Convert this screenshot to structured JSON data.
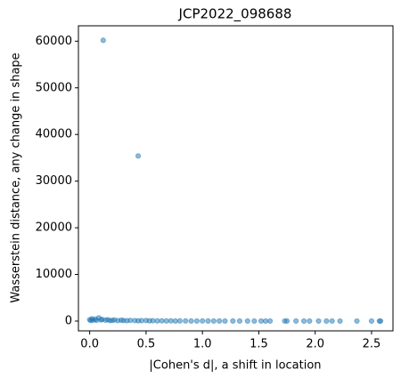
{
  "chart_data": {
    "type": "scatter",
    "title": "JCP2022_098688",
    "x_label": "|Cohen's d|, a shift in location",
    "y_label": "Wasserstein distance, any change in shape",
    "color": "#1f77b4",
    "series": [
      {
        "x": [
          0.12,
          0.43,
          0.0,
          0.01,
          0.02,
          0.03,
          0.05,
          0.06,
          0.08,
          0.1,
          0.11,
          0.14,
          0.16,
          0.18,
          0.2,
          0.22,
          0.25,
          0.28,
          0.3,
          0.33,
          0.36,
          0.4,
          0.43,
          0.46,
          0.5,
          0.53,
          0.56,
          0.6,
          0.64,
          0.68,
          0.72,
          0.76,
          0.8,
          0.85,
          0.9,
          0.95,
          1.0,
          1.05,
          1.1,
          1.15,
          1.2,
          1.27,
          1.33,
          1.4,
          1.46,
          1.52,
          1.56,
          1.6,
          1.73,
          1.75,
          1.83,
          1.9,
          1.95,
          2.03,
          2.1,
          2.15,
          2.22,
          2.37,
          2.5,
          2.57,
          2.58
        ],
        "y": [
          60200,
          35400,
          300,
          100,
          500,
          200,
          400,
          150,
          700,
          250,
          350,
          200,
          300,
          100,
          150,
          250,
          100,
          200,
          120,
          80,
          150,
          100,
          60,
          90,
          120,
          50,
          80,
          40,
          60,
          30,
          50,
          20,
          40,
          30,
          20,
          10,
          30,
          20,
          10,
          15,
          10,
          20,
          5,
          10,
          8,
          5,
          10,
          4,
          5,
          3,
          6,
          2,
          4,
          3,
          2,
          5,
          2,
          3,
          1,
          2,
          1
        ]
      }
    ],
    "xlim": [
      -0.1,
      2.69
    ],
    "ylim": [
      -2100,
      63300
    ],
    "xticks": [
      {
        "value": 0,
        "label": "0.0"
      },
      0.5,
      {
        "value": 1,
        "label": "1.0"
      },
      1.5,
      {
        "value": 2,
        "label": "2.0"
      },
      2.5
    ],
    "yticks": [
      0,
      10000,
      20000,
      30000,
      40000,
      50000,
      60000
    ]
  }
}
